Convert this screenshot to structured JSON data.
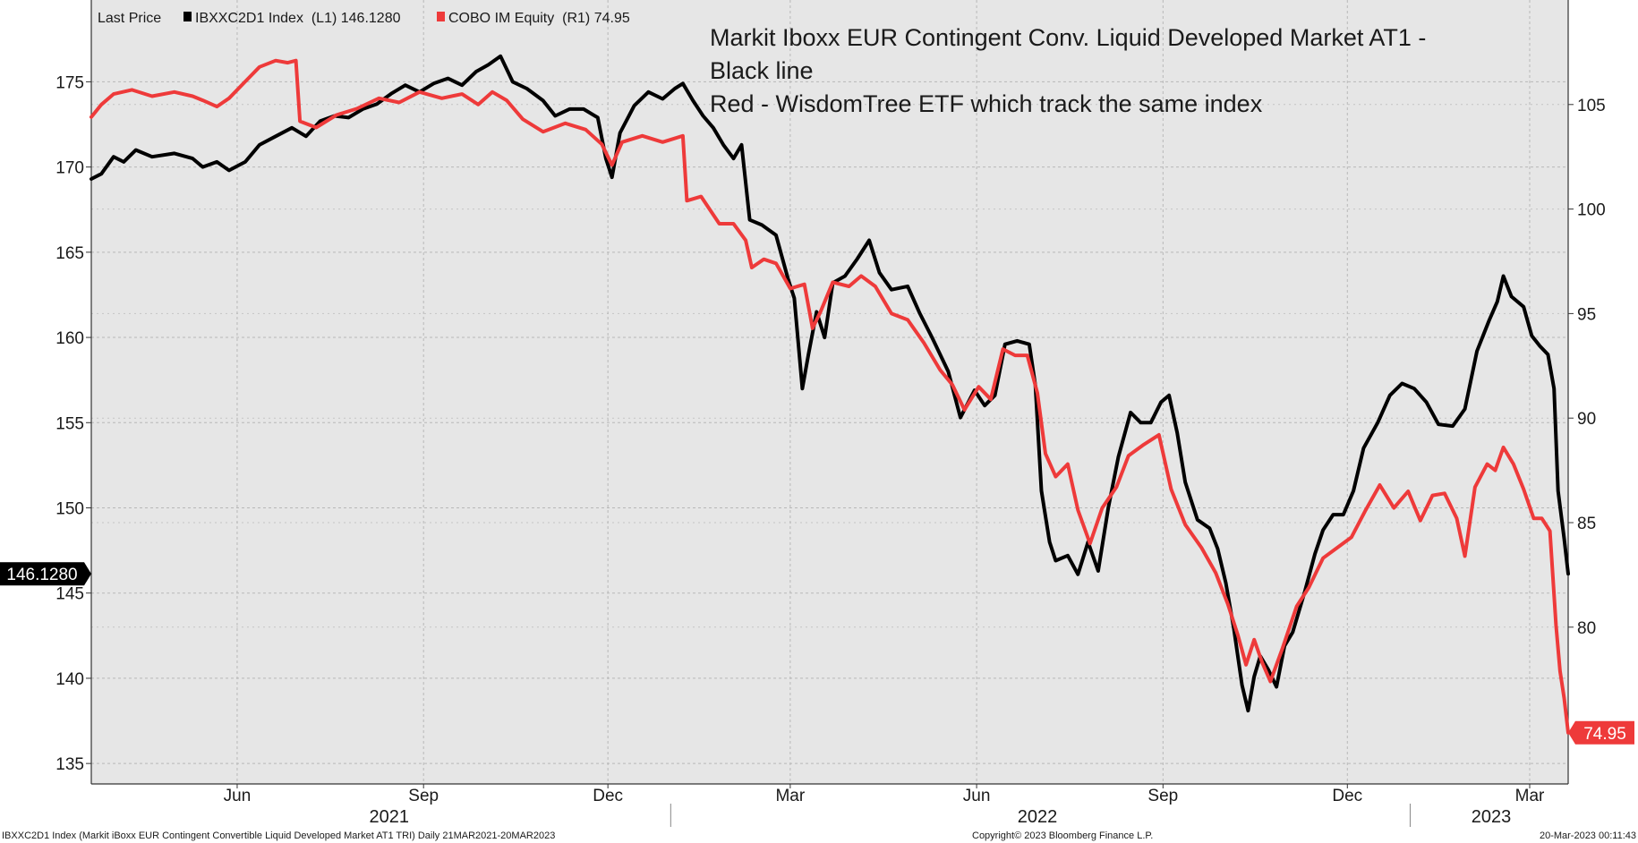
{
  "chart_data": {
    "type": "line",
    "legend": {
      "field_label": "Last Price",
      "entries": [
        {
          "series": "IBXXC2D1 Index",
          "axis": "(L1)",
          "last": "146.1280",
          "color": "#000000"
        },
        {
          "series": "COBO IM Equity",
          "axis": "(R1)",
          "last": "74.95",
          "color": "#ee3a3a"
        }
      ],
      "placement": "top-left"
    },
    "annotation_lines": [
      "Markit Iboxx EUR Contingent Conv. Liquid Developed Market AT1 -",
      "Black line",
      "Red - WisdomTree ETF which track the same index"
    ],
    "x_range": [
      "2021-03-21",
      "2023-03-20"
    ],
    "x_ticks": [
      {
        "date": "2021-06-01",
        "label": "Jun"
      },
      {
        "date": "2021-09-01",
        "label": "Sep"
      },
      {
        "date": "2021-12-01",
        "label": "Dec"
      },
      {
        "date": "2022-03-01",
        "label": "Mar"
      },
      {
        "date": "2022-06-01",
        "label": "Jun"
      },
      {
        "date": "2022-09-01",
        "label": "Sep"
      },
      {
        "date": "2022-12-01",
        "label": "Dec"
      },
      {
        "date": "2023-03-01",
        "label": "Mar"
      }
    ],
    "years": [
      {
        "label": "2021",
        "center": "2021-08-15"
      },
      {
        "label": "2022",
        "center": "2022-07-01"
      },
      {
        "label": "2023",
        "center": "2023-02-10"
      }
    ],
    "year_separators": [
      "2022-01-01",
      "2023-01-01"
    ],
    "y_left": {
      "ticks": [
        135,
        140,
        145,
        150,
        155,
        160,
        165,
        170,
        175
      ],
      "range": [
        133.8,
        179.8
      ]
    },
    "y_right": {
      "ticks": [
        80,
        85,
        90,
        95,
        100,
        105
      ],
      "range": [
        72.5,
        110
      ]
    },
    "grid": true,
    "last_value_tags": {
      "left": {
        "label": "146.1280",
        "value": 146.128,
        "color": "#000000"
      },
      "right": {
        "label": "74.95",
        "value": 74.95,
        "color": "#ee3a3a"
      }
    },
    "series": [
      {
        "name": "IBXXC2D1 Index",
        "axis": "left",
        "color": "#000000",
        "points": [
          [
            "2021-03-21",
            169.3
          ],
          [
            "2021-03-26",
            169.6
          ],
          [
            "2021-04-01",
            170.6
          ],
          [
            "2021-04-06",
            170.3
          ],
          [
            "2021-04-12",
            171.0
          ],
          [
            "2021-04-20",
            170.6
          ],
          [
            "2021-05-01",
            170.8
          ],
          [
            "2021-05-10",
            170.5
          ],
          [
            "2021-05-15",
            170.0
          ],
          [
            "2021-05-22",
            170.3
          ],
          [
            "2021-05-28",
            169.8
          ],
          [
            "2021-06-05",
            170.3
          ],
          [
            "2021-06-12",
            171.3
          ],
          [
            "2021-06-20",
            171.8
          ],
          [
            "2021-06-28",
            172.3
          ],
          [
            "2021-07-05",
            171.8
          ],
          [
            "2021-07-12",
            172.7
          ],
          [
            "2021-07-19",
            173.0
          ],
          [
            "2021-07-26",
            172.9
          ],
          [
            "2021-08-02",
            173.4
          ],
          [
            "2021-08-09",
            173.7
          ],
          [
            "2021-08-16",
            174.3
          ],
          [
            "2021-08-23",
            174.8
          ],
          [
            "2021-08-30",
            174.4
          ],
          [
            "2021-09-06",
            174.9
          ],
          [
            "2021-09-13",
            175.2
          ],
          [
            "2021-09-20",
            174.8
          ],
          [
            "2021-09-27",
            175.6
          ],
          [
            "2021-10-03",
            176.0
          ],
          [
            "2021-10-09",
            176.5
          ],
          [
            "2021-10-15",
            175.0
          ],
          [
            "2021-10-22",
            174.6
          ],
          [
            "2021-10-30",
            173.9
          ],
          [
            "2021-11-05",
            173.0
          ],
          [
            "2021-11-12",
            173.4
          ],
          [
            "2021-11-19",
            173.4
          ],
          [
            "2021-11-26",
            172.9
          ],
          [
            "2021-11-30",
            170.5
          ],
          [
            "2021-12-03",
            169.4
          ],
          [
            "2021-12-07",
            172.0
          ],
          [
            "2021-12-14",
            173.6
          ],
          [
            "2021-12-21",
            174.4
          ],
          [
            "2021-12-28",
            174.0
          ],
          [
            "2022-01-03",
            174.6
          ],
          [
            "2022-01-07",
            174.9
          ],
          [
            "2022-01-12",
            173.9
          ],
          [
            "2022-01-17",
            173.0
          ],
          [
            "2022-01-22",
            172.3
          ],
          [
            "2022-01-27",
            171.3
          ],
          [
            "2022-02-01",
            170.5
          ],
          [
            "2022-02-05",
            171.3
          ],
          [
            "2022-02-09",
            166.9
          ],
          [
            "2022-02-15",
            166.6
          ],
          [
            "2022-02-22",
            166.0
          ],
          [
            "2022-02-28",
            163.4
          ],
          [
            "2022-03-03",
            162.3
          ],
          [
            "2022-03-07",
            157.0
          ],
          [
            "2022-03-10",
            159.0
          ],
          [
            "2022-03-14",
            161.5
          ],
          [
            "2022-03-18",
            160.0
          ],
          [
            "2022-03-22",
            163.2
          ],
          [
            "2022-03-28",
            163.6
          ],
          [
            "2022-04-03",
            164.6
          ],
          [
            "2022-04-09",
            165.7
          ],
          [
            "2022-04-14",
            163.8
          ],
          [
            "2022-04-20",
            162.8
          ],
          [
            "2022-04-28",
            163.0
          ],
          [
            "2022-05-04",
            161.4
          ],
          [
            "2022-05-10",
            160.0
          ],
          [
            "2022-05-18",
            158.0
          ],
          [
            "2022-05-24",
            155.3
          ],
          [
            "2022-05-31",
            156.9
          ],
          [
            "2022-06-05",
            156.0
          ],
          [
            "2022-06-10",
            156.6
          ],
          [
            "2022-06-15",
            159.6
          ],
          [
            "2022-06-21",
            159.8
          ],
          [
            "2022-06-27",
            159.6
          ],
          [
            "2022-06-30",
            157.2
          ],
          [
            "2022-07-03",
            151.0
          ],
          [
            "2022-07-07",
            148.0
          ],
          [
            "2022-07-10",
            146.9
          ],
          [
            "2022-07-16",
            147.2
          ],
          [
            "2022-07-21",
            146.1
          ],
          [
            "2022-07-26",
            148.0
          ],
          [
            "2022-07-31",
            146.3
          ],
          [
            "2022-08-05",
            150.0
          ],
          [
            "2022-08-10",
            153.0
          ],
          [
            "2022-08-16",
            155.6
          ],
          [
            "2022-08-21",
            155.0
          ],
          [
            "2022-08-26",
            155.0
          ],
          [
            "2022-08-31",
            156.2
          ],
          [
            "2022-09-04",
            156.6
          ],
          [
            "2022-09-08",
            154.4
          ],
          [
            "2022-09-12",
            151.5
          ],
          [
            "2022-09-18",
            149.3
          ],
          [
            "2022-09-24",
            148.8
          ],
          [
            "2022-09-28",
            147.6
          ],
          [
            "2022-10-02",
            145.6
          ],
          [
            "2022-10-06",
            142.9
          ],
          [
            "2022-10-10",
            139.6
          ],
          [
            "2022-10-13",
            138.1
          ],
          [
            "2022-10-16",
            140.1
          ],
          [
            "2022-10-19",
            141.3
          ],
          [
            "2022-10-23",
            140.5
          ],
          [
            "2022-10-27",
            139.5
          ],
          [
            "2022-10-31",
            141.9
          ],
          [
            "2022-11-04",
            142.7
          ],
          [
            "2022-11-10",
            145.1
          ],
          [
            "2022-11-15",
            147.3
          ],
          [
            "2022-11-19",
            148.7
          ],
          [
            "2022-11-24",
            149.6
          ],
          [
            "2022-11-29",
            149.6
          ],
          [
            "2022-12-04",
            151.0
          ],
          [
            "2022-12-09",
            153.5
          ],
          [
            "2022-12-16",
            155.0
          ],
          [
            "2022-12-22",
            156.6
          ],
          [
            "2022-12-28",
            157.3
          ],
          [
            "2023-01-03",
            157.0
          ],
          [
            "2023-01-09",
            156.2
          ],
          [
            "2023-01-15",
            154.9
          ],
          [
            "2023-01-22",
            154.8
          ],
          [
            "2023-01-28",
            155.8
          ],
          [
            "2023-02-03",
            159.2
          ],
          [
            "2023-02-09",
            161.0
          ],
          [
            "2023-02-13",
            162.1
          ],
          [
            "2023-02-16",
            163.6
          ],
          [
            "2023-02-20",
            162.4
          ],
          [
            "2023-02-26",
            161.8
          ],
          [
            "2023-03-02",
            160.1
          ],
          [
            "2023-03-06",
            159.5
          ],
          [
            "2023-03-10",
            159.0
          ],
          [
            "2023-03-13",
            157.0
          ],
          [
            "2023-03-15",
            151.0
          ],
          [
            "2023-03-18",
            148.2
          ],
          [
            "2023-03-20",
            146.128
          ]
        ]
      },
      {
        "name": "COBO IM Equity",
        "axis": "right",
        "color": "#ee3a3a",
        "points": [
          [
            "2021-03-21",
            104.4
          ],
          [
            "2021-03-26",
            105.0
          ],
          [
            "2021-04-01",
            105.5
          ],
          [
            "2021-04-10",
            105.7
          ],
          [
            "2021-04-20",
            105.4
          ],
          [
            "2021-05-01",
            105.6
          ],
          [
            "2021-05-10",
            105.4
          ],
          [
            "2021-05-15",
            105.2
          ],
          [
            "2021-05-22",
            104.9
          ],
          [
            "2021-05-28",
            105.3
          ],
          [
            "2021-06-05",
            106.1
          ],
          [
            "2021-06-12",
            106.8
          ],
          [
            "2021-06-20",
            107.1
          ],
          [
            "2021-06-26",
            107.0
          ],
          [
            "2021-06-30",
            107.1
          ],
          [
            "2021-07-02",
            104.2
          ],
          [
            "2021-07-10",
            103.9
          ],
          [
            "2021-07-20",
            104.5
          ],
          [
            "2021-07-30",
            104.8
          ],
          [
            "2021-08-10",
            105.3
          ],
          [
            "2021-08-20",
            105.1
          ],
          [
            "2021-08-30",
            105.6
          ],
          [
            "2021-09-10",
            105.3
          ],
          [
            "2021-09-20",
            105.5
          ],
          [
            "2021-09-28",
            105.0
          ],
          [
            "2021-10-05",
            105.6
          ],
          [
            "2021-10-12",
            105.2
          ],
          [
            "2021-10-20",
            104.3
          ],
          [
            "2021-10-30",
            103.7
          ],
          [
            "2021-11-10",
            104.1
          ],
          [
            "2021-11-20",
            103.8
          ],
          [
            "2021-11-28",
            103.1
          ],
          [
            "2021-12-03",
            102.1
          ],
          [
            "2021-12-08",
            103.2
          ],
          [
            "2021-12-18",
            103.5
          ],
          [
            "2021-12-28",
            103.2
          ],
          [
            "2022-01-07",
            103.5
          ],
          [
            "2022-01-09",
            100.4
          ],
          [
            "2022-01-16",
            100.6
          ],
          [
            "2022-01-25",
            99.3
          ],
          [
            "2022-02-01",
            99.3
          ],
          [
            "2022-02-07",
            98.5
          ],
          [
            "2022-02-10",
            97.2
          ],
          [
            "2022-02-16",
            97.6
          ],
          [
            "2022-02-22",
            97.4
          ],
          [
            "2022-03-01",
            96.2
          ],
          [
            "2022-03-08",
            96.4
          ],
          [
            "2022-03-12",
            94.3
          ],
          [
            "2022-03-16",
            95.1
          ],
          [
            "2022-03-22",
            96.5
          ],
          [
            "2022-03-30",
            96.3
          ],
          [
            "2022-04-05",
            96.8
          ],
          [
            "2022-04-12",
            96.3
          ],
          [
            "2022-04-20",
            95.0
          ],
          [
            "2022-04-28",
            94.7
          ],
          [
            "2022-05-06",
            93.6
          ],
          [
            "2022-05-14",
            92.3
          ],
          [
            "2022-05-20",
            91.6
          ],
          [
            "2022-05-26",
            90.4
          ],
          [
            "2022-06-02",
            91.5
          ],
          [
            "2022-06-08",
            90.9
          ],
          [
            "2022-06-14",
            93.3
          ],
          [
            "2022-06-20",
            93.0
          ],
          [
            "2022-06-26",
            93.0
          ],
          [
            "2022-07-01",
            91.2
          ],
          [
            "2022-07-05",
            88.3
          ],
          [
            "2022-07-10",
            87.2
          ],
          [
            "2022-07-16",
            87.8
          ],
          [
            "2022-07-21",
            85.6
          ],
          [
            "2022-07-27",
            84.0
          ],
          [
            "2022-08-02",
            85.7
          ],
          [
            "2022-08-09",
            86.7
          ],
          [
            "2022-08-15",
            88.2
          ],
          [
            "2022-08-22",
            88.7
          ],
          [
            "2022-08-30",
            89.2
          ],
          [
            "2022-09-05",
            86.6
          ],
          [
            "2022-09-12",
            84.9
          ],
          [
            "2022-09-20",
            83.8
          ],
          [
            "2022-09-27",
            82.6
          ],
          [
            "2022-10-03",
            81.1
          ],
          [
            "2022-10-08",
            79.6
          ],
          [
            "2022-10-12",
            78.2
          ],
          [
            "2022-10-16",
            79.4
          ],
          [
            "2022-10-20",
            78.3
          ],
          [
            "2022-10-24",
            77.4
          ],
          [
            "2022-10-30",
            79.0
          ],
          [
            "2022-11-06",
            81.0
          ],
          [
            "2022-11-12",
            81.9
          ],
          [
            "2022-11-19",
            83.3
          ],
          [
            "2022-11-26",
            83.8
          ],
          [
            "2022-12-03",
            84.3
          ],
          [
            "2022-12-10",
            85.6
          ],
          [
            "2022-12-17",
            86.8
          ],
          [
            "2022-12-24",
            85.7
          ],
          [
            "2022-12-31",
            86.5
          ],
          [
            "2023-01-06",
            85.1
          ],
          [
            "2023-01-12",
            86.3
          ],
          [
            "2023-01-18",
            86.4
          ],
          [
            "2023-01-24",
            85.2
          ],
          [
            "2023-01-28",
            83.4
          ],
          [
            "2023-02-02",
            86.7
          ],
          [
            "2023-02-08",
            87.8
          ],
          [
            "2023-02-12",
            87.5
          ],
          [
            "2023-02-16",
            88.6
          ],
          [
            "2023-02-21",
            87.8
          ],
          [
            "2023-02-26",
            86.6
          ],
          [
            "2023-03-03",
            85.2
          ],
          [
            "2023-03-07",
            85.2
          ],
          [
            "2023-03-11",
            84.6
          ],
          [
            "2023-03-14",
            80.1
          ],
          [
            "2023-03-16",
            77.9
          ],
          [
            "2023-03-18",
            76.6
          ],
          [
            "2023-03-20",
            74.95
          ]
        ]
      }
    ]
  },
  "footer": {
    "left": "IBXXC2D1 Index (Markit iBoxx EUR Contingent Convertible Liquid Developed Market AT1 TRI)  Daily 21MAR2021-20MAR2023",
    "center": "Copyright© 2023 Bloomberg Finance L.P.",
    "right": "20-Mar-2023 00:11:43"
  }
}
